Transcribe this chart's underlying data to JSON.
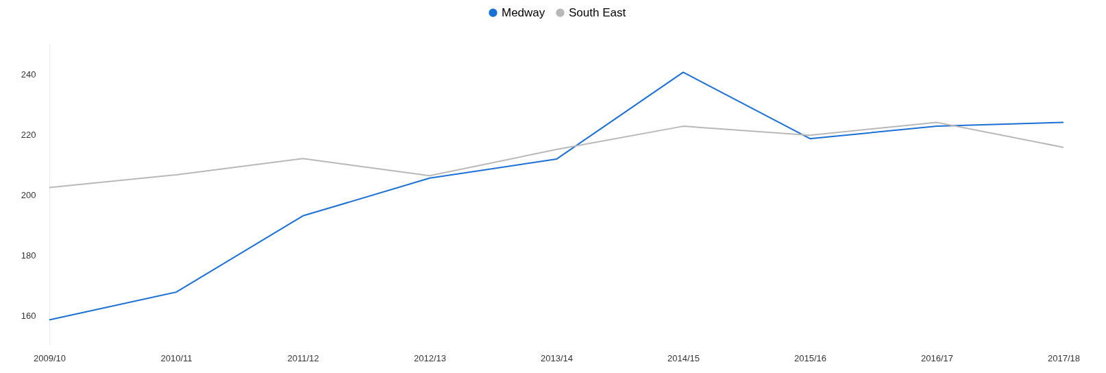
{
  "chart_data": {
    "type": "line",
    "categories": [
      "2009/10",
      "2010/11",
      "2011/12",
      "2012/13",
      "2013/14",
      "2014/15",
      "2015/16",
      "2016/17",
      "2017/18"
    ],
    "series": [
      {
        "name": "Medway",
        "color": "#1a6fd4",
        "values": [
          158.5,
          167.7,
          193,
          205.5,
          211.8,
          240.6,
          218.6,
          222.7,
          224
        ]
      },
      {
        "name": "South East",
        "color": "#b8b8b8",
        "values": [
          202.4,
          206.6,
          212,
          206.3,
          215,
          222.7,
          219.7,
          224,
          215.7
        ]
      }
    ],
    "ylim": [
      150,
      250
    ],
    "yticks": [
      160,
      180,
      200,
      220,
      240
    ],
    "grid": false,
    "legend": "top",
    "marker": "none",
    "line_style": "solid"
  }
}
